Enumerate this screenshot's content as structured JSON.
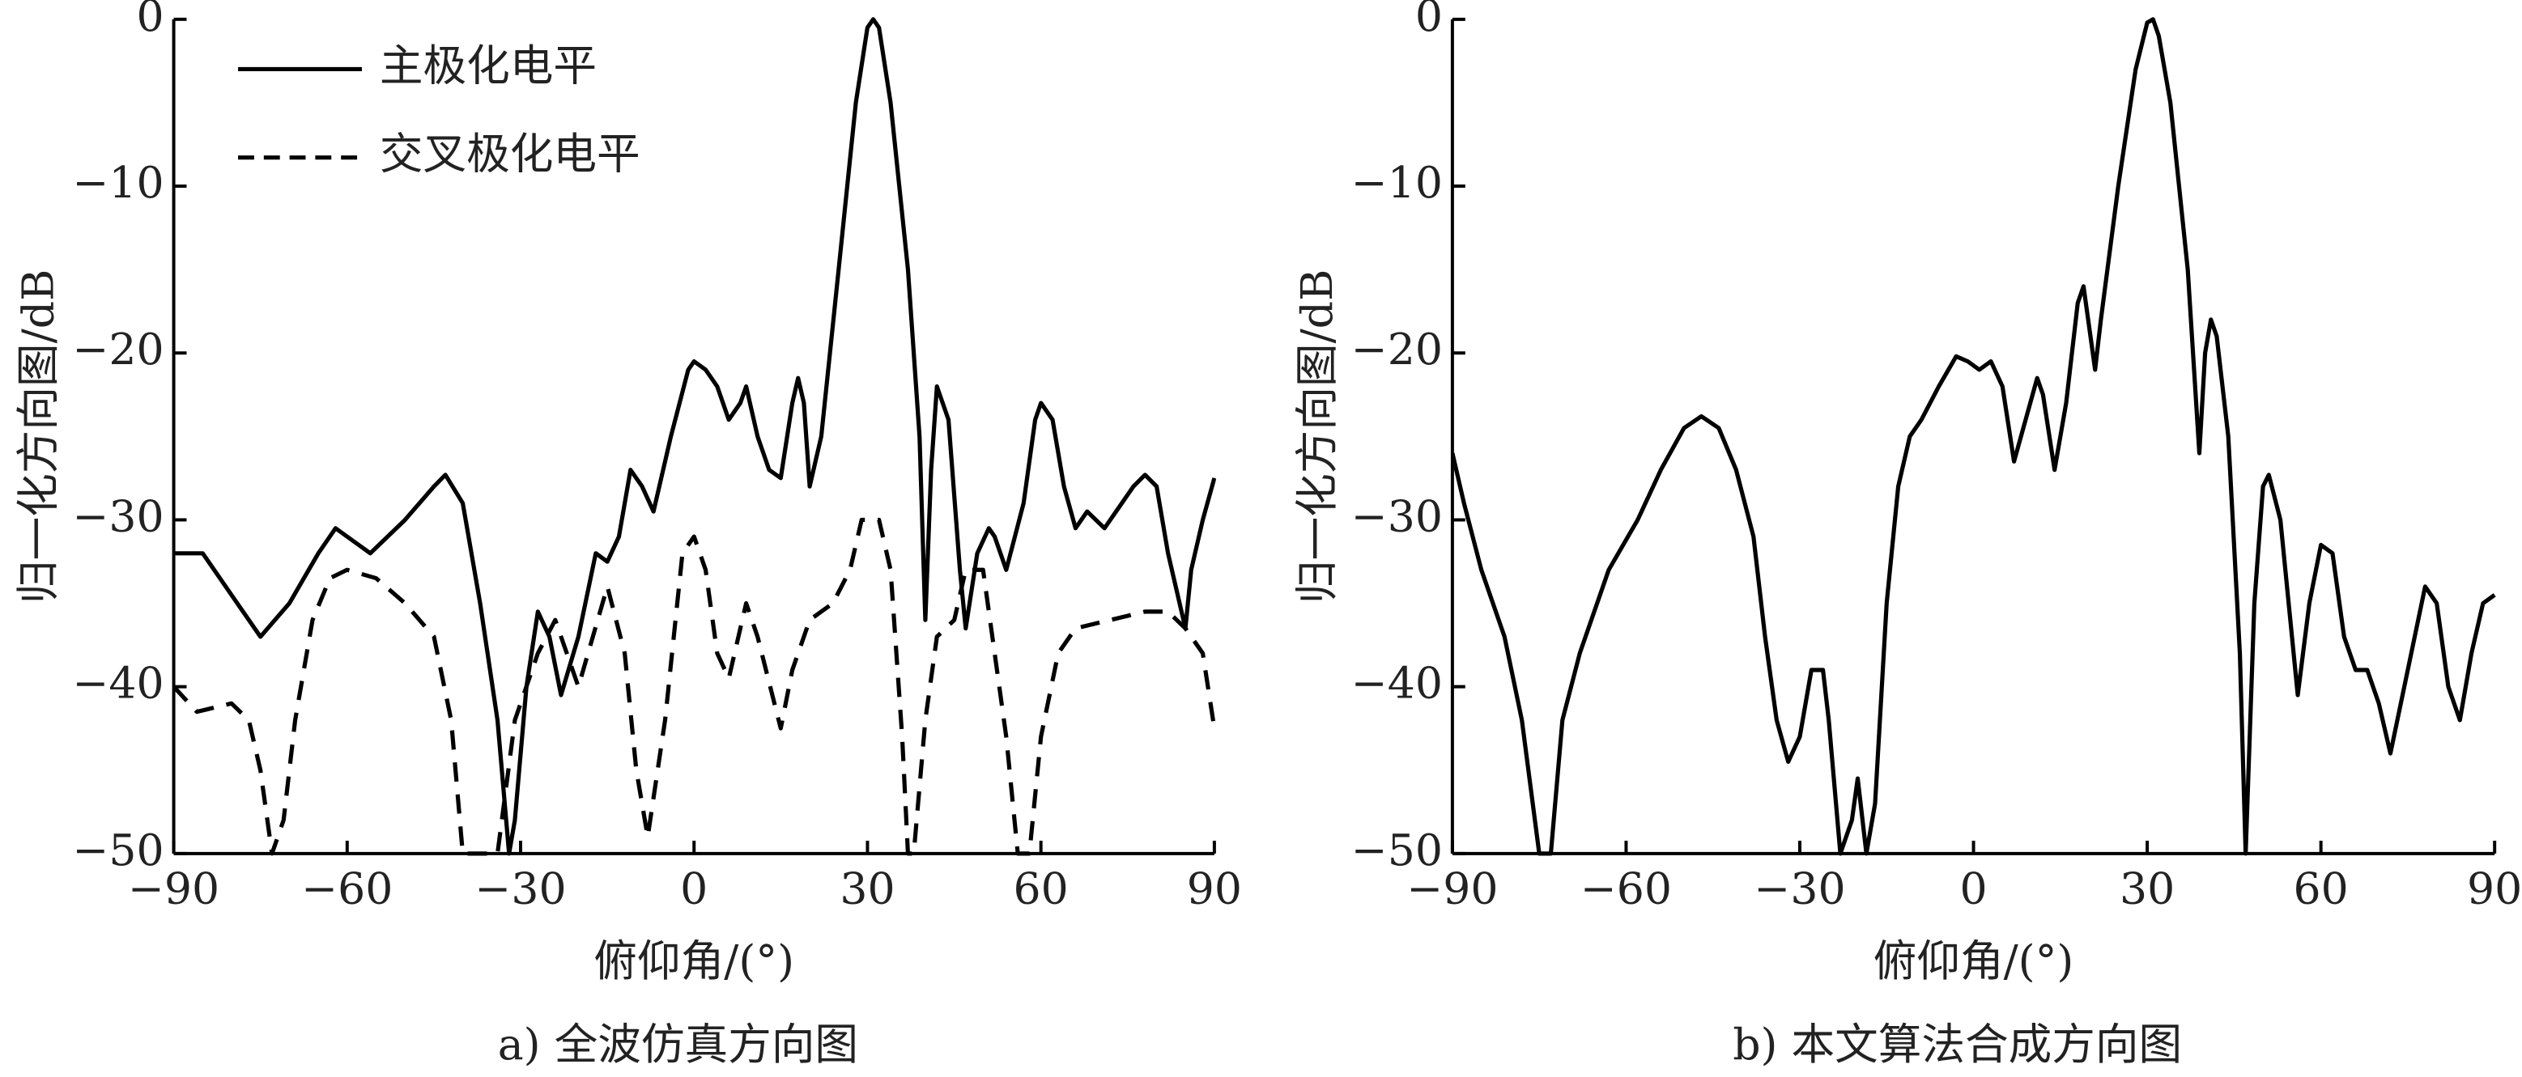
{
  "chart_data": [
    {
      "type": "line",
      "caption": "a) 全波仿真方向图",
      "xlabel": "俯仰角/(°)",
      "ylabel": "归一化方向图/dB",
      "xlim": [
        -90,
        90
      ],
      "ylim": [
        -50,
        0
      ],
      "xticks": [
        {
          "value": -90,
          "label": "−90"
        },
        {
          "value": -60,
          "label": "−60"
        },
        {
          "value": -30,
          "label": "−30"
        },
        0,
        30,
        60,
        90
      ],
      "yticks": [
        {
          "value": -50,
          "label": "−50"
        },
        {
          "value": -40,
          "label": "−40"
        },
        {
          "value": -30,
          "label": "−30"
        },
        {
          "value": -20,
          "label": "−20"
        },
        {
          "value": -10,
          "label": "−10"
        },
        0
      ],
      "legend": "upper left",
      "series": [
        {
          "name": "主极化电平",
          "color": "#000000",
          "style": "solid",
          "x": [
            -90,
            -85,
            -79,
            -75,
            -70,
            -65,
            -62,
            -58,
            -56,
            -50,
            -45,
            -43,
            -40,
            -37,
            -34,
            -32,
            -31,
            -29,
            -27,
            -25,
            -23,
            -20,
            -17,
            -15,
            -13,
            -11,
            -9,
            -7,
            -4,
            -1,
            0,
            2,
            4,
            6,
            8,
            9,
            11,
            13,
            15,
            17,
            18,
            19,
            20,
            22,
            25,
            28,
            30,
            31,
            32,
            34,
            37,
            39,
            40,
            41,
            42,
            44,
            46,
            47,
            49,
            51,
            52,
            54,
            57,
            59,
            60,
            62,
            64,
            66,
            68,
            71,
            73,
            76,
            78,
            80,
            82,
            85,
            86,
            88,
            90
          ],
          "values": [
            -32,
            -32,
            -35,
            -37,
            -35,
            -32,
            -30.5,
            -31.5,
            -32,
            -30,
            -28,
            -27.3,
            -29,
            -35,
            -42,
            -50,
            -48,
            -40,
            -35.5,
            -37,
            -40.5,
            -37,
            -32,
            -32.5,
            -31,
            -27,
            -28,
            -29.5,
            -25,
            -21,
            -20.5,
            -21,
            -22,
            -24,
            -23,
            -22,
            -25,
            -27,
            -27.5,
            -23,
            -21.5,
            -23,
            -28,
            -25,
            -15,
            -5,
            -0.5,
            0,
            -0.5,
            -5,
            -15,
            -25,
            -36,
            -27,
            -22,
            -24,
            -33,
            -36.5,
            -32,
            -30.5,
            -31,
            -33,
            -29,
            -24,
            -23,
            -24,
            -28,
            -30.5,
            -29.5,
            -30.5,
            -29.5,
            -28,
            -27.3,
            -28,
            -32,
            -36.5,
            -33,
            -30,
            -27.5
          ]
        },
        {
          "name": "交叉极化电平",
          "color": "#000000",
          "style": "dashed",
          "x": [
            -90,
            -86,
            -80,
            -77,
            -75,
            -73,
            -71,
            -69,
            -66,
            -63,
            -60,
            -55,
            -50,
            -45,
            -42,
            -40,
            -34,
            -31,
            -27,
            -24,
            -22,
            -20,
            -15,
            -12,
            -10,
            -8,
            -5,
            -2,
            0,
            2,
            4,
            6,
            9,
            11,
            15,
            17,
            20,
            24,
            27,
            29,
            32,
            34,
            36,
            37,
            38,
            40,
            42,
            45,
            47,
            50,
            52,
            54,
            56,
            58,
            60,
            63,
            66,
            72,
            78,
            82,
            85,
            88,
            90
          ],
          "values": [
            -40,
            -41.5,
            -41,
            -42,
            -45,
            -50,
            -48,
            -42,
            -36,
            -33.5,
            -33,
            -33.5,
            -35,
            -37,
            -42,
            -50,
            -50,
            -42,
            -38,
            -36,
            -38,
            -40,
            -34,
            -38,
            -45,
            -49,
            -42,
            -32,
            -31,
            -33,
            -38,
            -39.5,
            -35,
            -37,
            -42.5,
            -39,
            -36,
            -35,
            -33,
            -30,
            -30,
            -33,
            -43,
            -50,
            -50,
            -42,
            -37,
            -36,
            -33,
            -33,
            -38,
            -43,
            -50,
            -50,
            -43,
            -38,
            -36.5,
            -36,
            -35.5,
            -35.5,
            -36.5,
            -38,
            -42.5
          ]
        }
      ]
    },
    {
      "type": "line",
      "caption": "b) 本文算法合成方向图",
      "xlabel": "俯仰角/(°)",
      "ylabel": "归一化方向图/dB",
      "xlim": [
        -90,
        90
      ],
      "ylim": [
        -50,
        0
      ],
      "xticks": [
        {
          "value": -90,
          "label": "−90"
        },
        {
          "value": -60,
          "label": "−60"
        },
        {
          "value": -30,
          "label": "−30"
        },
        0,
        30,
        60,
        90
      ],
      "yticks": [
        {
          "value": -50,
          "label": "−50"
        },
        {
          "value": -40,
          "label": "−40"
        },
        {
          "value": -30,
          "label": "−30"
        },
        {
          "value": -20,
          "label": "−20"
        },
        {
          "value": -10,
          "label": "−10"
        },
        0
      ],
      "series": [
        {
          "color": "#000000",
          "style": "solid",
          "x": [
            -90,
            -88,
            -85,
            -81,
            -78,
            -75,
            -73,
            -71,
            -68,
            -63,
            -58,
            -54,
            -50,
            -47,
            -44,
            -41,
            -38,
            -36,
            -34,
            -32,
            -30,
            -28,
            -26,
            -25,
            -23,
            -21,
            -20,
            -18.5,
            -17,
            -15,
            -13,
            -11,
            -9,
            -6,
            -3,
            -1,
            1,
            3,
            5,
            7,
            9,
            11,
            12,
            14,
            16,
            18,
            19,
            21,
            22,
            25,
            28,
            30,
            31,
            32,
            34,
            37,
            39,
            40,
            41,
            42,
            44,
            46,
            47,
            48.5,
            50,
            51,
            53,
            55,
            56,
            58,
            60,
            62,
            64,
            66,
            68,
            70,
            72,
            75,
            78,
            80,
            82,
            84,
            86,
            88,
            90
          ],
          "values": [
            -26,
            -29,
            -33,
            -37,
            -42,
            -50,
            -50,
            -42,
            -38,
            -33,
            -30,
            -27,
            -24.5,
            -23.8,
            -24.5,
            -27,
            -31,
            -37,
            -42,
            -44.5,
            -43,
            -39,
            -39,
            -42,
            -50,
            -48,
            -45.5,
            -50,
            -47,
            -35,
            -28,
            -25,
            -24,
            -22,
            -20.2,
            -20.5,
            -21,
            -20.5,
            -22,
            -26.5,
            -24,
            -21.5,
            -22.5,
            -27,
            -23,
            -17,
            -16,
            -21,
            -18,
            -10,
            -3,
            -0.2,
            0,
            -1,
            -5,
            -15,
            -26,
            -20,
            -18,
            -19,
            -25,
            -38,
            -50,
            -35,
            -28,
            -27.3,
            -30,
            -37,
            -40.5,
            -35,
            -31.5,
            -32,
            -37,
            -39,
            -39,
            -41,
            -44,
            -39,
            -34,
            -35,
            -40,
            -42,
            -38,
            -35,
            -34.5
          ]
        }
      ]
    }
  ]
}
